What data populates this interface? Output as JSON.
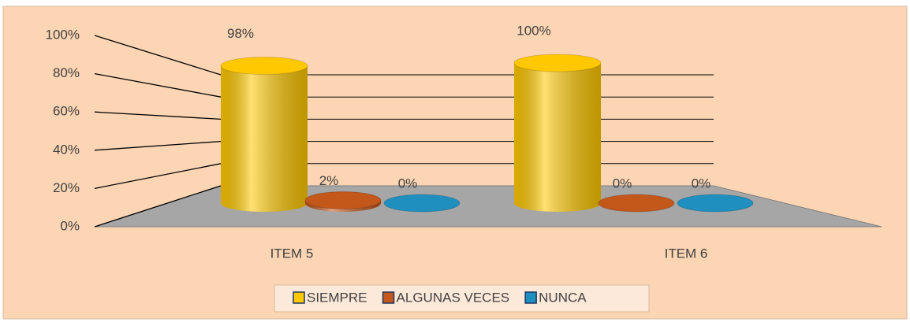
{
  "chart_data": {
    "type": "bar",
    "categories": [
      "ITEM 5",
      "ITEM 6"
    ],
    "series": [
      {
        "name": "SIEMPRE",
        "color": "#ffc800",
        "values": [
          98,
          100
        ],
        "value_labels": [
          "98%",
          "100%"
        ]
      },
      {
        "name": "ALGUNAS VECES",
        "color": "#c4571a",
        "values": [
          2,
          0
        ],
        "value_labels": [
          "2%",
          "0%"
        ]
      },
      {
        "name": "NUNCA",
        "color": "#1f8fc0",
        "values": [
          0,
          0
        ],
        "value_labels": [
          "0%",
          "0%"
        ]
      }
    ],
    "ylim": [
      0,
      100
    ],
    "yticks": [
      {
        "value": 0,
        "label": "0%"
      },
      {
        "value": 20,
        "label": "20%"
      },
      {
        "value": 40,
        "label": "40%"
      },
      {
        "value": 60,
        "label": "60%"
      },
      {
        "value": 80,
        "label": "80%"
      },
      {
        "value": 100,
        "label": "100%"
      }
    ],
    "grid": true,
    "legend": "bottom"
  }
}
